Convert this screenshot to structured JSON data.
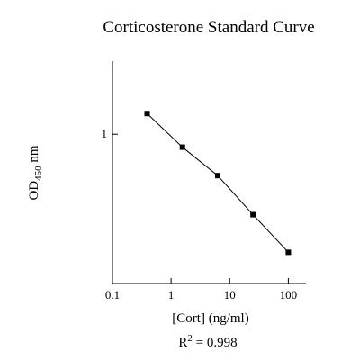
{
  "chart_data": {
    "type": "line",
    "title": "Corticosterone Standard Curve",
    "xlabel": "[Cort] (ng/ml)",
    "ylabel": {
      "prefix": "OD",
      "subscript": "450",
      "suffix": " nm"
    },
    "annotation": {
      "prefix": "R",
      "superscript": "2",
      "suffix": " = 0.998"
    },
    "x_scale": "log",
    "y_scale": "log",
    "xlim": [
      0.1,
      200
    ],
    "ylim": [
      0.2,
      2.2
    ],
    "x_ticks": [
      {
        "value": 0.1,
        "label": "0.1"
      },
      {
        "value": 1,
        "label": "1"
      },
      {
        "value": 10,
        "label": "10"
      },
      {
        "value": 100,
        "label": "100"
      }
    ],
    "y_ticks": [
      {
        "value": 1,
        "label": "1"
      }
    ],
    "grid": false,
    "marker": "square",
    "series": [
      {
        "x": [
          0.39,
          1.56,
          6.25,
          25,
          100
        ],
        "y": [
          1.25,
          0.87,
          0.64,
          0.42,
          0.28
        ]
      }
    ]
  }
}
